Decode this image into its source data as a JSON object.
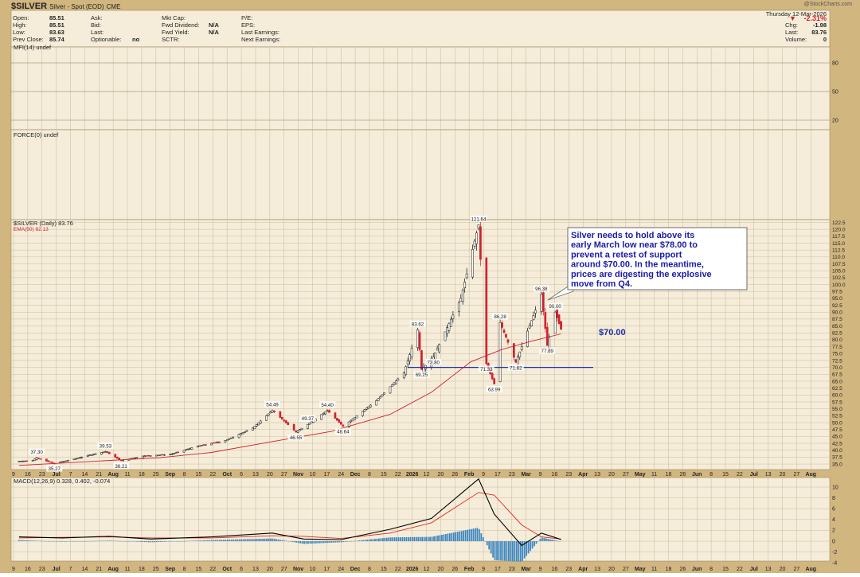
{
  "header": {
    "symbol": "$SILVER",
    "name": "Silver - Spot (EOD)",
    "exchange": "CME",
    "watermark": "@StockCharts.com",
    "date": "Thursday 12-Mar-2026",
    "quote": [
      {
        "label": "Open:",
        "value": "85.51"
      },
      {
        "label": "High:",
        "value": "85.51"
      },
      {
        "label": "Low:",
        "value": "83.63"
      },
      {
        "label": "Prev Close:",
        "value": "85.74"
      }
    ],
    "col2": [
      "Ask:",
      "Bid:",
      "Last:",
      "Optionable:"
    ],
    "optionable": "no",
    "col3": [
      {
        "label": "Mkt Cap:",
        "value": ""
      },
      {
        "label": "Fwd Dividend:",
        "value": "N/A"
      },
      {
        "label": "Fwd Yield:",
        "value": "N/A"
      },
      {
        "label": "SCTR:",
        "value": ""
      }
    ],
    "col4": [
      "P/E:",
      "EPS:",
      "Last Earnings:",
      "Next Earnings:"
    ],
    "change": [
      {
        "label": "",
        "value": "-2.31%"
      },
      {
        "label": "Chg:",
        "value": "-1.98"
      },
      {
        "label": "Last:",
        "value": "83.76"
      },
      {
        "label": "Volume:",
        "value": "0"
      }
    ]
  },
  "panels": {
    "mfi_label": "MFI(14) undef",
    "force_label": "FORCE(0) undef",
    "price_label": "$SILVER (Daily) 83.76",
    "ema_label": "EMA(50) 82.13",
    "macd_label": "MACD(12,26,9) 0.328, 0.402, -0.074"
  },
  "annotation": {
    "text_lines": [
      "Silver needs to hold above its",
      "early March low near $78.00 to",
      "prevent a retest of support",
      "around $70.00. In the meantime,",
      "prices are digesting the explosive",
      "move from Q4."
    ],
    "support_label": "$70.00"
  },
  "colors": {
    "background": "#d2b680",
    "panel_bg": "#f5edd9",
    "grid": "#c8b79a",
    "up_candle": "#111111",
    "down_candle": "#d0202f",
    "ema": "#d0202f",
    "macd_line": "#000000",
    "signal_line": "#e0291d",
    "histogram": "#3d87c2",
    "support_line": "#1a2fa8",
    "annotation_text": "#1a1aa8"
  },
  "x_axis_labels": [
    "9",
    "16",
    "23",
    "Jul",
    "7",
    "14",
    "21",
    "Aug",
    "11",
    "18",
    "25",
    "Sep",
    "8",
    "15",
    "22",
    "Oct",
    "6",
    "13",
    "20",
    "27",
    "Nov",
    "10",
    "17",
    "24",
    "Dec",
    "8",
    "15",
    "22",
    "2026",
    "12",
    "20",
    "26",
    "Feb",
    "9",
    "17",
    "23",
    "Mar",
    "9",
    "16",
    "23",
    "Apr",
    "13",
    "20",
    "27",
    "May",
    "11",
    "18",
    "26",
    "Jun",
    "8",
    "15",
    "22",
    "Jul",
    "13",
    "20",
    "27",
    "Aug"
  ],
  "chart_data": {
    "type": "line",
    "title": "$SILVER (Daily) 83.76",
    "price_axis_ticks": [
      35.0,
      37.5,
      40.0,
      42.5,
      45.0,
      47.5,
      50.0,
      52.5,
      55.0,
      57.5,
      60.0,
      62.5,
      65.0,
      67.5,
      70.0,
      72.5,
      75.0,
      77.5,
      80.0,
      82.5,
      85.0,
      87.5,
      90.0,
      92.5,
      95.0,
      97.5,
      100.0,
      102.5,
      105.0,
      107.5,
      110.0,
      112.5,
      115.0,
      117.5,
      120.0,
      122.5
    ],
    "price_ylim": [
      33.0,
      123.5
    ],
    "mfi_ticks": [
      20,
      50,
      80
    ],
    "macd_ticks": [
      -4,
      -2,
      0,
      2,
      4,
      6,
      8,
      10
    ],
    "price_series": [
      {
        "date": "2025-06-09",
        "close": 36.0
      },
      {
        "date": "2025-06-16",
        "close": 36.3
      },
      {
        "date": "2025-06-18",
        "close": 37.3
      },
      {
        "date": "2025-06-23",
        "close": 36.0
      },
      {
        "date": "2025-06-27",
        "close": 35.27
      },
      {
        "date": "2025-07-07",
        "close": 36.8
      },
      {
        "date": "2025-07-14",
        "close": 38.1
      },
      {
        "date": "2025-07-23",
        "close": 39.53
      },
      {
        "date": "2025-07-31",
        "close": 36.21
      },
      {
        "date": "2025-08-11",
        "close": 37.9
      },
      {
        "date": "2025-08-25",
        "close": 38.5
      },
      {
        "date": "2025-09-08",
        "close": 41.5
      },
      {
        "date": "2025-09-22",
        "close": 43.5
      },
      {
        "date": "2025-10-06",
        "close": 48.0
      },
      {
        "date": "2025-10-16",
        "close": 54.49
      },
      {
        "date": "2025-10-28",
        "close": 46.55
      },
      {
        "date": "2025-11-03",
        "close": 49.37
      },
      {
        "date": "2025-11-13",
        "close": 54.4
      },
      {
        "date": "2025-11-21",
        "close": 48.64
      },
      {
        "date": "2025-12-08",
        "close": 58.0
      },
      {
        "date": "2025-12-22",
        "close": 68.0
      },
      {
        "date": "2025-12-29",
        "close": 83.62
      },
      {
        "date": "2025-12-31",
        "close": 69.25
      },
      {
        "date": "2026-01-06",
        "close": 73.8
      },
      {
        "date": "2026-01-20",
        "close": 95.0
      },
      {
        "date": "2026-01-29",
        "close": 121.64
      },
      {
        "date": "2026-02-02",
        "close": 71.33
      },
      {
        "date": "2026-02-06",
        "close": 63.99
      },
      {
        "date": "2026-02-09",
        "close": 86.28
      },
      {
        "date": "2026-02-17",
        "close": 71.82
      },
      {
        "date": "2026-03-02",
        "close": 96.38
      },
      {
        "date": "2026-03-05",
        "close": 77.89
      },
      {
        "date": "2026-03-09",
        "close": 90.0
      },
      {
        "date": "2026-03-12",
        "close": 83.76
      }
    ],
    "price_labels": [
      {
        "date": "2025-06-18",
        "value": 37.3,
        "text": "37.30"
      },
      {
        "date": "2025-06-27",
        "value": 35.27,
        "text": "35.27"
      },
      {
        "date": "2025-07-23",
        "value": 39.53,
        "text": "39.53"
      },
      {
        "date": "2025-07-31",
        "value": 36.21,
        "text": "36.21"
      },
      {
        "date": "2025-10-16",
        "value": 54.49,
        "text": "54.49"
      },
      {
        "date": "2025-11-03",
        "value": 49.37,
        "text": "49.37"
      },
      {
        "date": "2025-10-28",
        "value": 46.55,
        "text": "46.55"
      },
      {
        "date": "2025-11-13",
        "value": 54.4,
        "text": "54.40"
      },
      {
        "date": "2025-11-21",
        "value": 48.64,
        "text": "48.64"
      },
      {
        "date": "2025-12-29",
        "value": 83.62,
        "text": "83.62"
      },
      {
        "date": "2026-01-06",
        "value": 73.8,
        "text": "73.80"
      },
      {
        "date": "2025-12-31",
        "value": 69.25,
        "text": "69.25"
      },
      {
        "date": "2026-01-29",
        "value": 121.64,
        "text": "121.64"
      },
      {
        "date": "2026-02-02",
        "value": 71.33,
        "text": "71.33"
      },
      {
        "date": "2026-02-06",
        "value": 63.99,
        "text": "63.99"
      },
      {
        "date": "2026-02-09",
        "value": 86.28,
        "text": "86.28"
      },
      {
        "date": "2026-02-17",
        "value": 71.82,
        "text": "71.82"
      },
      {
        "date": "2026-03-02",
        "value": 96.38,
        "text": "96.38"
      },
      {
        "date": "2026-03-05",
        "value": 77.89,
        "text": "77.89"
      },
      {
        "date": "2026-03-09",
        "value": 90.0,
        "text": "90.00"
      }
    ],
    "support_level": 70.0,
    "ema50_series": [
      {
        "date": "2025-06-09",
        "value": 34.5
      },
      {
        "date": "2025-07-15",
        "value": 35.9
      },
      {
        "date": "2025-08-20",
        "value": 37.3
      },
      {
        "date": "2025-09-15",
        "value": 39.2
      },
      {
        "date": "2025-10-15",
        "value": 43.0
      },
      {
        "date": "2025-11-15",
        "value": 46.8
      },
      {
        "date": "2025-12-15",
        "value": 53.0
      },
      {
        "date": "2026-01-05",
        "value": 61.0
      },
      {
        "date": "2026-01-25",
        "value": 72.0
      },
      {
        "date": "2026-02-10",
        "value": 76.5
      },
      {
        "date": "2026-02-25",
        "value": 79.5
      },
      {
        "date": "2026-03-12",
        "value": 82.13
      }
    ],
    "macd_series": [
      {
        "date": "2025-06-09",
        "macd": 0.8,
        "signal": 0.6
      },
      {
        "date": "2025-07-01",
        "macd": 0.6,
        "signal": 0.7
      },
      {
        "date": "2025-07-25",
        "macd": 0.9,
        "signal": 0.8
      },
      {
        "date": "2025-08-15",
        "macd": 0.4,
        "signal": 0.6
      },
      {
        "date": "2025-09-15",
        "macd": 0.8,
        "signal": 0.6
      },
      {
        "date": "2025-10-16",
        "macd": 1.5,
        "signal": 1.0
      },
      {
        "date": "2025-11-01",
        "macd": 0.4,
        "signal": 0.9
      },
      {
        "date": "2025-11-20",
        "macd": 0.3,
        "signal": 0.5
      },
      {
        "date": "2025-12-15",
        "macd": 2.2,
        "signal": 1.5
      },
      {
        "date": "2026-01-05",
        "macd": 4.2,
        "signal": 3.4
      },
      {
        "date": "2026-01-29",
        "macd": 11.5,
        "signal": 9.0
      },
      {
        "date": "2026-02-06",
        "macd": 5.0,
        "signal": 8.5
      },
      {
        "date": "2026-02-20",
        "macd": -0.8,
        "signal": 3.0
      },
      {
        "date": "2026-03-02",
        "macd": 1.5,
        "signal": 0.8
      },
      {
        "date": "2026-03-12",
        "macd": 0.328,
        "signal": 0.402
      }
    ]
  }
}
